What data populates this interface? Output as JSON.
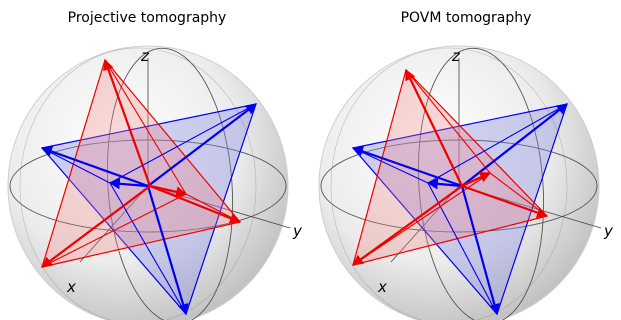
{
  "panels": [
    {
      "title": "Projective tomography",
      "axes": {
        "x": "x",
        "y": "y",
        "z": "z"
      },
      "blue_vertices": [
        [
          42,
          148
        ],
        [
          256,
          104
        ],
        [
          186,
          314
        ]
      ],
      "red_vertices": [
        [
          105,
          60
        ],
        [
          240,
          222
        ],
        [
          42,
          267
        ]
      ],
      "blue_center": [
        148,
        186
      ],
      "red_center": [
        150,
        186
      ],
      "blue_arrow_tip": [
        110,
        183
      ],
      "red_arrow_tip": [
        186,
        194
      ]
    },
    {
      "title": "POVM tomography",
      "axes": {
        "x": "x",
        "y": "y",
        "z": "z"
      },
      "blue_vertices": [
        [
          42,
          148
        ],
        [
          256,
          104
        ],
        [
          186,
          314
        ]
      ],
      "red_vertices": [
        [
          95,
          70
        ],
        [
          236,
          216
        ],
        [
          42,
          265
        ]
      ],
      "blue_center": [
        151,
        186
      ],
      "red_center": [
        151,
        186
      ],
      "blue_arrow_tip": [
        117,
        183
      ],
      "red_arrow_tip": [
        179,
        173
      ]
    }
  ],
  "colors": {
    "blue": "#0000ee",
    "red": "#ee0000",
    "blue_fill": "#8080e0",
    "red_fill": "#f08080",
    "wire": "#555555"
  }
}
